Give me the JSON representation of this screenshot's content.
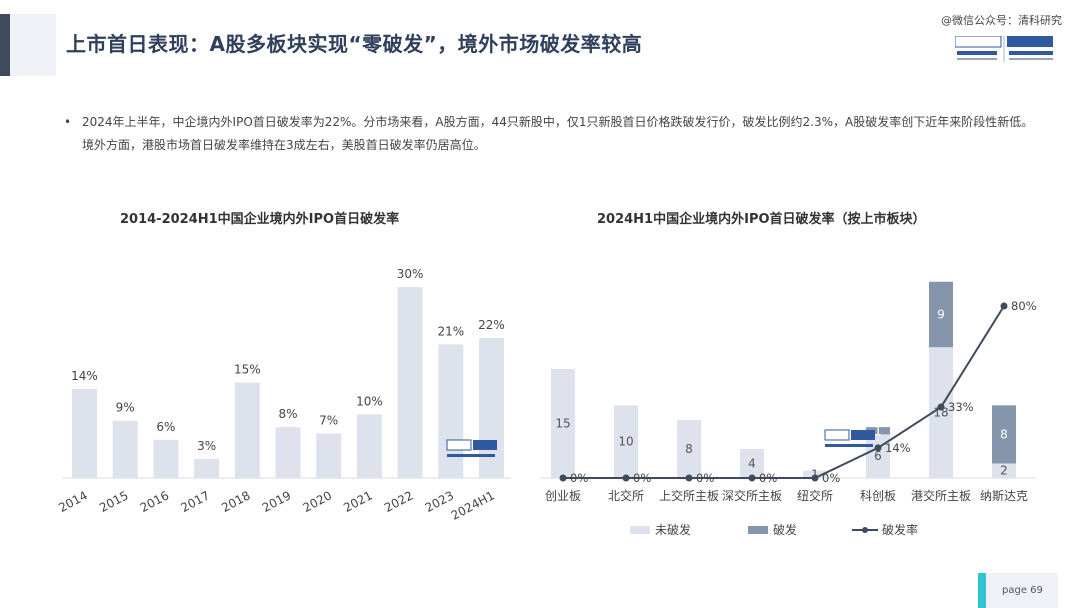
{
  "header": {
    "title": "上市首日表现：A股多板块实现“零破发”，境外市场破发率较高",
    "watermark": "@微信公众号：清科研究",
    "logo_text": "ZERO2IPO"
  },
  "bullet": {
    "text": "2024年上半年，中企境内外IPO首日破发率为22%。分市场来看，A股方面，44只新股中，仅1只新股首日价格跌破发行价，破发比例约2.3%，A股破发率创下近年来阶段性新低。境外方面，港股市场首日破发率维持在3成左右，美股首日破发率仍居高位。"
  },
  "footer": {
    "page_label": "page  69"
  },
  "chart_data": [
    {
      "type": "bar",
      "title": "2014-2024H1中国企业境内外IPO首日破发率",
      "categories": [
        "2014",
        "2015",
        "2016",
        "2017",
        "2018",
        "2019",
        "2020",
        "2021",
        "2022",
        "2023",
        "2024H1"
      ],
      "values": [
        14,
        9,
        6,
        3,
        15,
        8,
        7,
        10,
        30,
        21,
        22
      ],
      "value_labels": [
        "14%",
        "9%",
        "6%",
        "3%",
        "15%",
        "8%",
        "7%",
        "10%",
        "30%",
        "21%",
        "22%"
      ],
      "unit": "%",
      "ylim": [
        0,
        33
      ],
      "color": "#dde2ec"
    },
    {
      "type": "bar",
      "stacked": true,
      "secondary_type": "line",
      "title": "2024H1中国企业境内外IPO首日破发率（按上市板块）",
      "categories": [
        "创业板",
        "北交所",
        "上交所主板",
        "深交所主板",
        "纽交所",
        "科创板",
        "港交所主板",
        "纳斯达克"
      ],
      "series": [
        {
          "name": "未破发",
          "values": [
            15,
            10,
            8,
            4,
            1,
            6,
            18,
            2
          ],
          "color": "#dde2ec"
        },
        {
          "name": "破发",
          "values": [
            0,
            0,
            0,
            0,
            0,
            1,
            9,
            8
          ],
          "color": "#8595ab"
        }
      ],
      "line_series": {
        "name": "破发率",
        "values": [
          0,
          0,
          0,
          0,
          0,
          14,
          33,
          80
        ],
        "labels": [
          "0%",
          "0%",
          "0%",
          "0%",
          "0%",
          "14%",
          "33%",
          "80%"
        ],
        "color": "#3f4b5c"
      },
      "ylim": [
        0,
        30
      ],
      "line_ylim": [
        0,
        100
      ],
      "legend_position": "bottom"
    }
  ]
}
